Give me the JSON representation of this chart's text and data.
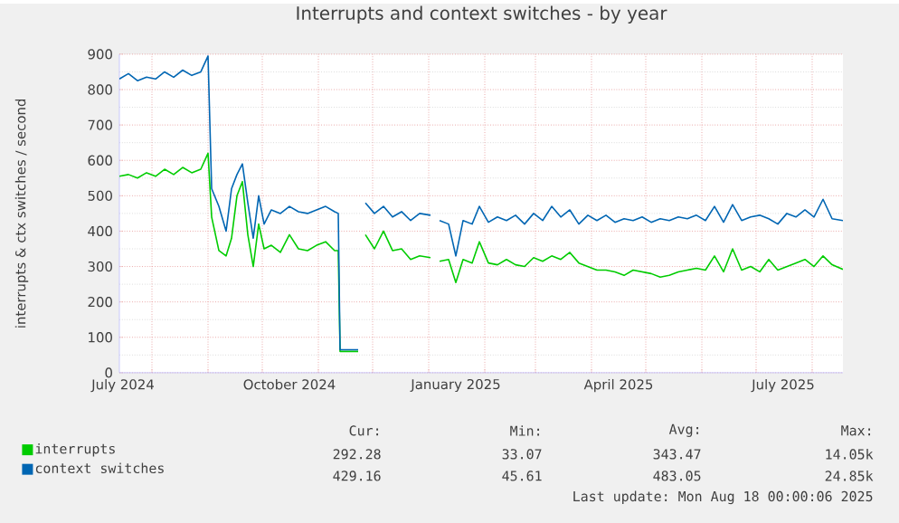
{
  "chart_data": {
    "type": "line",
    "title": "Interrupts and context switches - by year",
    "ylabel": "interrupts & ctx switches / second",
    "x": [
      "2024-07-14",
      "2024-07-19",
      "2024-07-24",
      "2024-07-29",
      "2024-08-03",
      "2024-08-08",
      "2024-08-13",
      "2024-08-18",
      "2024-08-23",
      "2024-08-28",
      "2024-09-01",
      "2024-09-03",
      "2024-09-07",
      "2024-09-11",
      "2024-09-14",
      "2024-09-17",
      "2024-09-20",
      "2024-09-23",
      "2024-09-26",
      "2024-09-29",
      "2024-10-02",
      "2024-10-06",
      "2024-10-11",
      "2024-10-16",
      "2024-10-21",
      "2024-10-26",
      "2024-10-31",
      "2024-11-05",
      "2024-11-10",
      "2024-11-12",
      "2024-11-13",
      "2024-11-23",
      "2024-11-25",
      "2024-11-27",
      "2024-12-02",
      "2024-12-07",
      "2024-12-12",
      "2024-12-17",
      "2024-12-22",
      "2024-12-27",
      "2025-01-02",
      "2025-01-04",
      "2025-01-07",
      "2025-01-12",
      "2025-01-16",
      "2025-01-20",
      "2025-01-25",
      "2025-01-29",
      "2025-02-03",
      "2025-02-08",
      "2025-02-13",
      "2025-02-18",
      "2025-02-23",
      "2025-02-28",
      "2025-03-05",
      "2025-03-10",
      "2025-03-15",
      "2025-03-20",
      "2025-03-25",
      "2025-03-30",
      "2025-04-04",
      "2025-04-09",
      "2025-04-14",
      "2025-04-19",
      "2025-04-24",
      "2025-04-29",
      "2025-05-04",
      "2025-05-09",
      "2025-05-14",
      "2025-05-19",
      "2025-05-24",
      "2025-05-29",
      "2025-06-03",
      "2025-06-08",
      "2025-06-13",
      "2025-06-18",
      "2025-06-23",
      "2025-06-28",
      "2025-07-03",
      "2025-07-08",
      "2025-07-13",
      "2025-07-18",
      "2025-07-23",
      "2025-07-28",
      "2025-08-02",
      "2025-08-07",
      "2025-08-12",
      "2025-08-18"
    ],
    "series": [
      {
        "name": "interrupts",
        "color": "#00cc00",
        "values": [
          555,
          560,
          550,
          565,
          555,
          575,
          560,
          580,
          565,
          575,
          620,
          440,
          345,
          330,
          380,
          500,
          540,
          390,
          300,
          420,
          350,
          360,
          340,
          390,
          350,
          345,
          360,
          370,
          345,
          345,
          60,
          60,
          null,
          390,
          350,
          400,
          345,
          350,
          320,
          330,
          325,
          null,
          315,
          320,
          255,
          320,
          310,
          370,
          310,
          305,
          320,
          305,
          300,
          325,
          315,
          330,
          320,
          340,
          310,
          300,
          290,
          290,
          285,
          275,
          290,
          285,
          280,
          270,
          275,
          285,
          290,
          295,
          290,
          330,
          285,
          350,
          290,
          300,
          285,
          320,
          290,
          300,
          310,
          320,
          300,
          330,
          305,
          292
        ]
      },
      {
        "name": "context switches",
        "color": "#0066b3",
        "values": [
          830,
          845,
          825,
          835,
          830,
          850,
          835,
          855,
          840,
          850,
          895,
          520,
          470,
          400,
          520,
          560,
          590,
          480,
          380,
          500,
          420,
          460,
          450,
          470,
          455,
          450,
          460,
          470,
          455,
          450,
          65,
          65,
          null,
          480,
          450,
          470,
          440,
          455,
          430,
          450,
          445,
          null,
          430,
          420,
          330,
          430,
          420,
          470,
          425,
          440,
          430,
          445,
          420,
          450,
          430,
          470,
          440,
          460,
          420,
          445,
          430,
          445,
          425,
          435,
          430,
          440,
          425,
          435,
          430,
          440,
          435,
          445,
          430,
          470,
          425,
          475,
          430,
          440,
          445,
          435,
          420,
          450,
          440,
          460,
          440,
          490,
          435,
          430
        ]
      }
    ],
    "xlim": [
      "2024-07-14",
      "2025-08-18"
    ],
    "xticks": [
      {
        "value": "2024-08-01",
        "label": null
      },
      {
        "value": "2024-09-01",
        "label": null
      },
      {
        "value": "2024-10-01",
        "label": null
      },
      {
        "value": "2024-11-01",
        "label": null
      },
      {
        "value": "2024-12-01",
        "label": null
      },
      {
        "value": "2025-01-01",
        "label": null
      },
      {
        "value": "2025-02-01",
        "label": null
      },
      {
        "value": "2025-03-01",
        "label": null
      },
      {
        "value": "2025-04-01",
        "label": null
      },
      {
        "value": "2025-05-01",
        "label": null
      },
      {
        "value": "2025-06-01",
        "label": null
      },
      {
        "value": "2025-07-01",
        "label": null
      },
      {
        "value": "2025-08-01",
        "label": null
      },
      {
        "value": "2024-07-16",
        "label": "July 2024"
      },
      {
        "value": "2024-10-16",
        "label": "October 2024"
      },
      {
        "value": "2025-01-16",
        "label": "January 2025"
      },
      {
        "value": "2025-04-16",
        "label": "April 2025"
      },
      {
        "value": "2025-07-16",
        "label": "July 2025"
      }
    ],
    "ylim": [
      0,
      900
    ],
    "yticks": [
      0,
      100,
      200,
      300,
      400,
      500,
      600,
      700,
      800,
      900
    ],
    "grid": true,
    "legend": "bottom",
    "line_style": "solid",
    "annotations": [
      "Cur:",
      "Min:",
      "Avg:",
      "Max:",
      "292.28",
      "33.07",
      "343.47",
      "14.05k",
      "429.16",
      "45.61",
      "483.05",
      "24.85k",
      "Last update: Mon Aug 18 00:00:06 2025"
    ]
  }
}
